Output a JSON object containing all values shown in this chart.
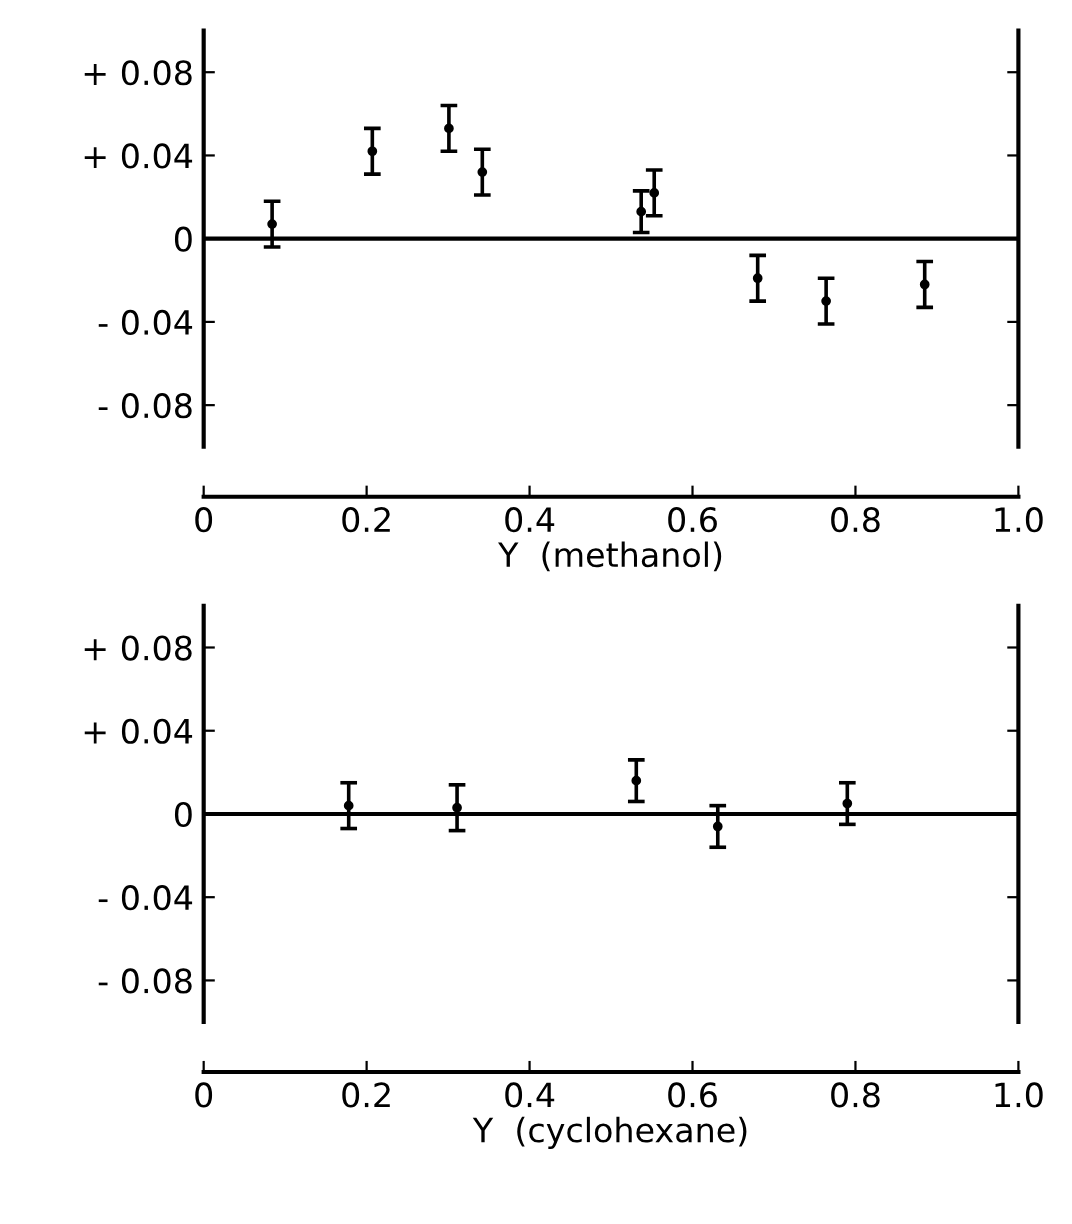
{
  "chart_data": [
    {
      "type": "scatter",
      "xlabel": "Y  (methanol)",
      "xlim": [
        0,
        1.0
      ],
      "ylim": [
        -0.1,
        0.1
      ],
      "xticks": [
        0,
        0.2,
        0.4,
        0.6,
        0.8,
        {
          "value": 1.0,
          "label": "1.0"
        }
      ],
      "yticks": [
        {
          "value": 0.08,
          "label": "+ 0.08"
        },
        {
          "value": 0.04,
          "label": "+ 0.04"
        },
        0,
        {
          "value": -0.04,
          "label": "- 0.04"
        },
        {
          "value": -0.08,
          "label": "- 0.08"
        }
      ],
      "marker": "circle",
      "grid": false,
      "legend": false,
      "ref_lines": [
        {
          "axis": "y",
          "value": 0,
          "color": "#000000"
        }
      ],
      "series": [
        {
          "color": "#000000",
          "x": [
            0.084,
            0.207,
            0.301,
            0.342,
            0.537,
            0.553,
            0.68,
            0.764,
            0.885
          ],
          "values": [
            0.007,
            0.042,
            0.053,
            0.032,
            0.013,
            0.022,
            -0.019,
            -0.03,
            -0.022
          ],
          "errors": [
            0.011,
            0.011,
            0.011,
            0.011,
            0.01,
            0.011,
            0.011,
            0.011,
            0.011
          ]
        }
      ]
    },
    {
      "type": "scatter",
      "xlabel": "Y  (cyclohexane)",
      "xlim": [
        0,
        1.0
      ],
      "ylim": [
        -0.1,
        0.1
      ],
      "xticks": [
        0,
        0.2,
        0.4,
        0.6,
        0.8,
        {
          "value": 1.0,
          "label": "1.0"
        }
      ],
      "yticks": [
        {
          "value": 0.08,
          "label": "+ 0.08"
        },
        {
          "value": 0.04,
          "label": "+ 0.04"
        },
        0,
        {
          "value": -0.04,
          "label": "- 0.04"
        },
        {
          "value": -0.08,
          "label": "- 0.08"
        }
      ],
      "marker": "circle",
      "grid": false,
      "legend": false,
      "ref_lines": [
        {
          "axis": "y",
          "value": 0,
          "color": "#000000"
        }
      ],
      "series": [
        {
          "color": "#000000",
          "x": [
            0.178,
            0.311,
            0.531,
            0.631,
            0.79
          ],
          "values": [
            0.004,
            0.003,
            0.016,
            -0.006,
            0.005
          ],
          "errors": [
            0.011,
            0.011,
            0.01,
            0.01,
            0.01
          ]
        }
      ]
    }
  ]
}
